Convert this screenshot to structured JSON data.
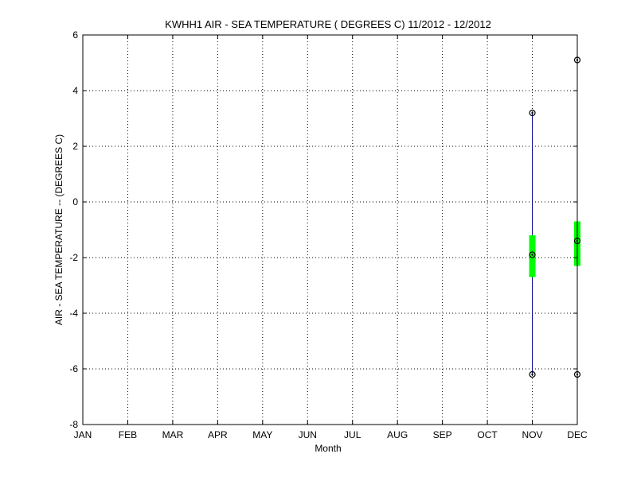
{
  "chart_data": {
    "type": "box",
    "title": "KWHH1  AIR - SEA TEMPERATURE ( DEGREES C) 11/2012 - 12/2012",
    "xlabel": "Month",
    "ylabel": "AIR - SEA TEMPERATURE -- (DEGREES C)",
    "categories": [
      "JAN",
      "FEB",
      "MAR",
      "APR",
      "MAY",
      "JUN",
      "JUL",
      "AUG",
      "SEP",
      "OCT",
      "NOV",
      "DEC"
    ],
    "ylim": [
      -8,
      6
    ],
    "yticks": [
      6,
      4,
      2,
      0,
      -2,
      -4,
      -6,
      -8
    ],
    "grid": true,
    "series": [
      {
        "category": "NOV",
        "min": -6.2,
        "q1": -2.7,
        "median": -1.9,
        "q3": -1.2,
        "max": 3.2
      },
      {
        "category": "DEC",
        "min": -6.2,
        "q1": -2.3,
        "median": -1.4,
        "q3": -0.7,
        "max": 5.1
      }
    ],
    "colors": {
      "whisker": "#00008b",
      "box": "#00ff00",
      "marker": "#000000",
      "grid": "#000000"
    }
  }
}
